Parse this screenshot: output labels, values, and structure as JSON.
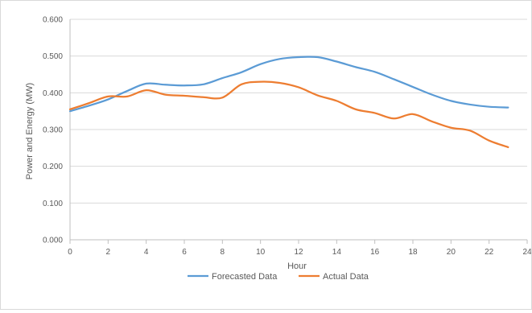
{
  "chart_data": {
    "type": "line",
    "title": "",
    "xlabel": "Hour",
    "ylabel": "Power and Energy (MW)",
    "xlim": [
      0,
      24
    ],
    "ylim": [
      0,
      0.6
    ],
    "x_ticks": [
      "0",
      "2",
      "4",
      "6",
      "8",
      "10",
      "12",
      "14",
      "16",
      "18",
      "20",
      "22",
      "24"
    ],
    "y_ticks": [
      "0.000",
      "0.100",
      "0.200",
      "0.300",
      "0.400",
      "0.500",
      "0.600"
    ],
    "grid": "horizontal",
    "legend_position": "bottom",
    "x": [
      0,
      1,
      2,
      3,
      4,
      5,
      6,
      7,
      8,
      9,
      10,
      11,
      12,
      13,
      14,
      15,
      16,
      17,
      18,
      19,
      20,
      21,
      22,
      23
    ],
    "series": [
      {
        "name": "Forecasted Data",
        "color": "#5b9bd5",
        "values": [
          0.35,
          0.365,
          0.382,
          0.405,
          0.425,
          0.422,
          0.42,
          0.423,
          0.44,
          0.456,
          0.478,
          0.492,
          0.497,
          0.497,
          0.485,
          0.47,
          0.457,
          0.437,
          0.416,
          0.395,
          0.378,
          0.368,
          0.362,
          0.36
        ]
      },
      {
        "name": "Actual Data",
        "color": "#ed7d31",
        "values": [
          0.355,
          0.372,
          0.39,
          0.39,
          0.407,
          0.395,
          0.392,
          0.388,
          0.387,
          0.423,
          0.43,
          0.427,
          0.415,
          0.393,
          0.378,
          0.355,
          0.345,
          0.33,
          0.342,
          0.322,
          0.305,
          0.297,
          0.27,
          0.252
        ]
      }
    ]
  }
}
